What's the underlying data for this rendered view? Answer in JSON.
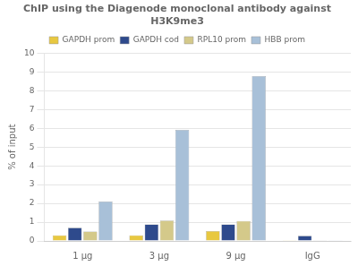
{
  "chart_data": {
    "type": "bar",
    "title": "ChIP using the Diagenode monoclonal antibody against\nH3K9me3",
    "ylabel": "% of input",
    "categories": [
      "1 μg",
      "3 μg",
      "9 μg",
      "IgG"
    ],
    "series": [
      {
        "name": "GAPDH prom",
        "color": "#E8C840",
        "values": [
          0.3,
          0.3,
          0.52,
          0.01
        ]
      },
      {
        "name": "GAPDH cod",
        "color": "#2E4A8C",
        "values": [
          0.7,
          0.88,
          0.88,
          0.27
        ]
      },
      {
        "name": "RPL10 prom",
        "color": "#D4C98A",
        "values": [
          0.5,
          1.08,
          1.06,
          0.03
        ]
      },
      {
        "name": "HBB prom",
        "color": "#A8C0D8",
        "values": [
          2.1,
          5.92,
          8.78,
          0.04
        ]
      }
    ],
    "ylim": [
      0,
      10
    ],
    "yticks": [
      0,
      1,
      2,
      3,
      4,
      5,
      6,
      7,
      8,
      9,
      10
    ],
    "grid": true,
    "legend": "top"
  }
}
